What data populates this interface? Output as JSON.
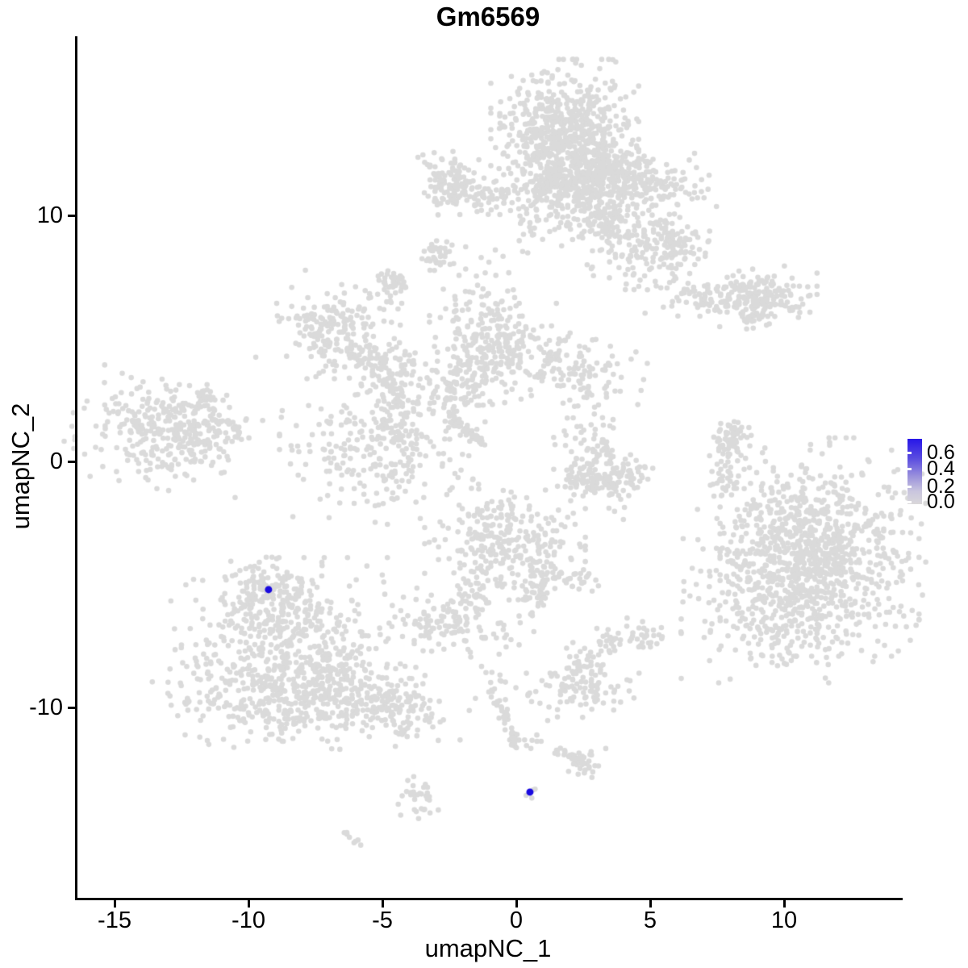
{
  "chart_data": {
    "type": "scatter",
    "title": "Gm6569",
    "xlabel": "umapNC_1",
    "ylabel": "umapNC_2",
    "xlim": [
      -16.4,
      14.3
    ],
    "ylim": [
      -17.8,
      17.3
    ],
    "grid": false,
    "x_ticks": [
      {
        "v": -15,
        "label": "-15"
      },
      {
        "v": -10,
        "label": "-10"
      },
      {
        "v": -5,
        "label": "-5"
      },
      {
        "v": 0,
        "label": "0"
      },
      {
        "v": 5,
        "label": "5"
      },
      {
        "v": 10,
        "label": "10"
      }
    ],
    "y_ticks": [
      {
        "v": 10,
        "label": "10"
      },
      {
        "v": 0,
        "label": "0"
      },
      {
        "v": -10,
        "label": "-10"
      }
    ],
    "legend": {
      "position": "right",
      "labels": [
        "0.6",
        "0.4",
        "0.2",
        "0.0"
      ],
      "values": [
        0.6,
        0.4,
        0.2,
        0.0
      ],
      "min": 0.0,
      "max": 0.6,
      "gradient": [
        "#2716E8",
        "#5A4CE0",
        "#9C93DC",
        "#C9C5DE",
        "#DAD8DA"
      ]
    },
    "colors": {
      "point_low": "#DADADA",
      "point_high": "#1A0ADF",
      "axis": "#000000",
      "background": "#FFFFFF"
    },
    "clusters": [
      {
        "cx": 1.81,
        "cy": 13.34,
        "sx": 1.15,
        "sy": 1.25,
        "n": 650,
        "rot": 0
      },
      {
        "cx": 1.96,
        "cy": 11.15,
        "sx": 0.95,
        "sy": 0.75,
        "n": 260,
        "rot": 0
      },
      {
        "cx": 3.46,
        "cy": 12.03,
        "sx": 0.5,
        "sy": 0.5,
        "n": 80,
        "rot": 0
      },
      {
        "cx": 4.58,
        "cy": 11.31,
        "sx": 1.25,
        "sy": 0.62,
        "n": 220,
        "rot": -8
      },
      {
        "cx": 4.52,
        "cy": 9.02,
        "sx": 1.1,
        "sy": 0.85,
        "n": 170,
        "rot": 0
      },
      {
        "cx": 3.25,
        "cy": 9.8,
        "sx": 0.4,
        "sy": 0.3,
        "n": 45,
        "rot": 0
      },
      {
        "cx": 5.9,
        "cy": 8.72,
        "sx": 0.55,
        "sy": 0.5,
        "n": 55,
        "rot": 0
      },
      {
        "cx": 0.96,
        "cy": 9.7,
        "sx": 0.6,
        "sy": 0.8,
        "n": 30,
        "rot": 0
      },
      {
        "cx": -2.47,
        "cy": 11.34,
        "sx": 0.5,
        "sy": 0.55,
        "n": 100,
        "rot": 0
      },
      {
        "cx": -1.27,
        "cy": 10.85,
        "sx": 0.75,
        "sy": 0.4,
        "n": 70,
        "rot": 0
      },
      {
        "cx": -2.92,
        "cy": 8.43,
        "sx": 0.28,
        "sy": 0.3,
        "n": 35,
        "rot": 0
      },
      {
        "cx": -4.61,
        "cy": 7.11,
        "sx": 0.32,
        "sy": 0.38,
        "n": 45,
        "rot": 0
      },
      {
        "cx": 7.38,
        "cy": 6.66,
        "sx": 1.05,
        "sy": 0.35,
        "n": 95,
        "rot": -4
      },
      {
        "cx": 9.19,
        "cy": 6.72,
        "sx": 0.85,
        "sy": 0.52,
        "n": 140,
        "rot": 0
      },
      {
        "cx": 8.8,
        "cy": 5.74,
        "sx": 0.38,
        "sy": 0.2,
        "n": 22,
        "rot": 35
      },
      {
        "cx": -6.69,
        "cy": 5.25,
        "sx": 1.05,
        "sy": 0.9,
        "n": 190,
        "rot": -20
      },
      {
        "cx": -5.12,
        "cy": 3.93,
        "sx": 0.85,
        "sy": 0.5,
        "n": 95,
        "rot": -25
      },
      {
        "cx": -4.46,
        "cy": 2.13,
        "sx": 0.38,
        "sy": 0.95,
        "n": 75,
        "rot": 0
      },
      {
        "cx": -5.12,
        "cy": 0.36,
        "sx": 1.55,
        "sy": 1.25,
        "n": 230,
        "rot": 0
      },
      {
        "cx": -2.41,
        "cy": 2.98,
        "sx": 1.15,
        "sy": 0.8,
        "n": 120,
        "rot": 28
      },
      {
        "cx": -0.84,
        "cy": 4.92,
        "sx": 1.0,
        "sy": 1.1,
        "n": 210,
        "rot": 0
      },
      {
        "cx": 1.57,
        "cy": 3.93,
        "sx": 1.35,
        "sy": 0.62,
        "n": 140,
        "rot": -12
      },
      {
        "cx": -1.51,
        "cy": 7.21,
        "sx": 0.55,
        "sy": 1.05,
        "n": 22,
        "rot": 0
      },
      {
        "cx": 2.86,
        "cy": 2.52,
        "sx": 0.8,
        "sy": 0.9,
        "n": 28,
        "rot": 0
      },
      {
        "cx": -13.37,
        "cy": 1.18,
        "sx": 1.4,
        "sy": 0.95,
        "n": 300,
        "rot": -12
      },
      {
        "cx": -11.51,
        "cy": 1.34,
        "sx": 0.85,
        "sy": 0.45,
        "n": 70,
        "rot": 0
      },
      {
        "cx": -11.48,
        "cy": 2.56,
        "sx": 0.4,
        "sy": 0.28,
        "n": 25,
        "rot": 0
      },
      {
        "cx": 2.29,
        "cy": -0.69,
        "sx": 0.5,
        "sy": 0.38,
        "n": 50,
        "rot": 0
      },
      {
        "cx": 3.25,
        "cy": -0.82,
        "sx": 0.55,
        "sy": 0.38,
        "n": 55,
        "rot": 0
      },
      {
        "cx": 4.1,
        "cy": -0.46,
        "sx": 0.45,
        "sy": 0.45,
        "n": 45,
        "rot": 0
      },
      {
        "cx": 3.19,
        "cy": 0.62,
        "sx": 0.32,
        "sy": 0.45,
        "n": 32,
        "rot": 0
      },
      {
        "cx": 2.92,
        "cy": 0.13,
        "sx": 0.7,
        "sy": 0.6,
        "n": 20,
        "rot": 0
      },
      {
        "cx": 8.07,
        "cy": 0.85,
        "sx": 0.32,
        "sy": 0.42,
        "n": 55,
        "rot": 0
      },
      {
        "cx": 7.89,
        "cy": -0.16,
        "sx": 0.28,
        "sy": 0.6,
        "n": 35,
        "rot": 0
      },
      {
        "cx": 7.77,
        "cy": -1.11,
        "sx": 0.2,
        "sy": 0.3,
        "n": 9,
        "rot": 0
      },
      {
        "cx": 11.45,
        "cy": -3.48,
        "sx": 1.6,
        "sy": 1.85,
        "n": 620,
        "rot": 0
      },
      {
        "cx": 10.6,
        "cy": -5.28,
        "sx": 1.85,
        "sy": 1.55,
        "n": 400,
        "rot": 0
      },
      {
        "cx": 8.67,
        "cy": -5.28,
        "sx": 1.05,
        "sy": 1.55,
        "n": 95,
        "rot": 0
      },
      {
        "cx": 9.49,
        "cy": -2.39,
        "sx": 0.9,
        "sy": 0.8,
        "n": 70,
        "rot": 0
      },
      {
        "cx": -9.16,
        "cy": -5.38,
        "sx": 0.78,
        "sy": 0.62,
        "n": 140,
        "rot": 0
      },
      {
        "cx": -8.37,
        "cy": -7.87,
        "sx": 1.9,
        "sy": 1.65,
        "n": 520,
        "rot": 0
      },
      {
        "cx": -8.67,
        "cy": -9.51,
        "sx": 2.05,
        "sy": 1.05,
        "n": 260,
        "rot": 0
      },
      {
        "cx": -5.36,
        "cy": -9.64,
        "sx": 1.5,
        "sy": 0.6,
        "n": 130,
        "rot": -16
      },
      {
        "cx": -4.31,
        "cy": -10.16,
        "sx": 0.6,
        "sy": 0.42,
        "n": 60,
        "rot": 0
      },
      {
        "cx": -4.13,
        "cy": -11.02,
        "sx": 0.3,
        "sy": 0.15,
        "n": 6,
        "rot": 0
      },
      {
        "cx": -0.42,
        "cy": -3.28,
        "sx": 1.25,
        "sy": 0.98,
        "n": 280,
        "rot": 0
      },
      {
        "cx": 0.96,
        "cy": -5.05,
        "sx": 0.36,
        "sy": 0.78,
        "n": 60,
        "rot": -18
      },
      {
        "cx": -1.33,
        "cy": -4.92,
        "sx": 0.3,
        "sy": 0.3,
        "n": 15,
        "rot": 0
      },
      {
        "cx": -1.72,
        "cy": -5.67,
        "sx": 0.26,
        "sy": 0.48,
        "n": 18,
        "rot": 25
      },
      {
        "cx": -2.41,
        "cy": -6.59,
        "sx": 1.1,
        "sy": 0.52,
        "n": 120,
        "rot": -8
      },
      {
        "cx": 2.59,
        "cy": -4.85,
        "sx": 0.6,
        "sy": 0.22,
        "n": 25,
        "rot": 0
      },
      {
        "cx": 3.34,
        "cy": -7.34,
        "sx": 0.32,
        "sy": 0.32,
        "n": 25,
        "rot": 0
      },
      {
        "cx": 4.85,
        "cy": -7.08,
        "sx": 0.45,
        "sy": 0.32,
        "n": 30,
        "rot": 0
      },
      {
        "cx": 2.47,
        "cy": -8.33,
        "sx": 0.32,
        "sy": 0.42,
        "n": 30,
        "rot": 0
      },
      {
        "cx": 2.38,
        "cy": -9.15,
        "sx": 0.98,
        "sy": 0.52,
        "n": 95,
        "rot": 12
      },
      {
        "cx": -0.9,
        "cy": -9.08,
        "sx": 0.26,
        "sy": 0.42,
        "n": 14,
        "rot": 0
      },
      {
        "cx": 0.63,
        "cy": -11.38,
        "sx": 0.32,
        "sy": 0.12,
        "n": 8,
        "rot": 0
      },
      {
        "cx": 2.53,
        "cy": -12.3,
        "sx": 0.38,
        "sy": 0.38,
        "n": 26,
        "rot": 0
      },
      {
        "cx": -3.64,
        "cy": -13.74,
        "sx": 0.36,
        "sy": 0.55,
        "n": 32,
        "rot": 18
      },
      {
        "cx": 0.48,
        "cy": -13.34,
        "sx": 0.28,
        "sy": 0.22,
        "n": 4,
        "rot": 0
      }
    ],
    "strands": [
      {
        "x1": -2.47,
        "y1": 1.77,
        "x2": -1.2,
        "y2": 0.66,
        "n": 55,
        "jitter": 0.09
      },
      {
        "x1": -0.66,
        "y1": -9.7,
        "x2": 0.03,
        "y2": -11.57,
        "n": 35,
        "jitter": 0.1
      },
      {
        "x1": 1.51,
        "y1": -11.67,
        "x2": 2.53,
        "y2": -12.26,
        "n": 28,
        "jitter": 0.09
      },
      {
        "x1": -6.39,
        "y1": -15.15,
        "x2": -5.81,
        "y2": -15.54,
        "n": 8,
        "jitter": 0.06
      }
    ],
    "singles": [
      [
        -2.86,
        8.59
      ],
      [
        3.67,
        -2.03
      ],
      [
        4.04,
        -1.87
      ],
      [
        3.46,
        -1.9
      ],
      [
        4.0,
        -2.36
      ]
    ],
    "highlighted_points": [
      {
        "x": -9.25,
        "y": -5.21
      },
      {
        "x": 0.51,
        "y": -13.44
      }
    ]
  }
}
